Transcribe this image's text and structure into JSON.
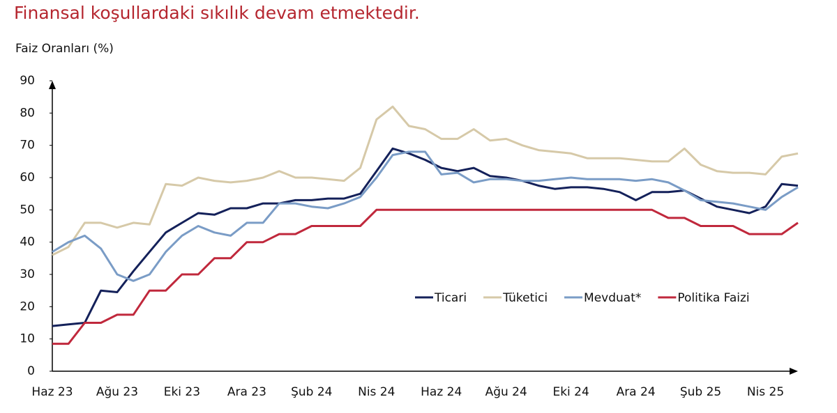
{
  "chart_data": {
    "type": "line",
    "title": "Finansal koşullardaki sıkılık devam etmektedir.",
    "y_label": "Faiz Oranları (%)",
    "categories": [
      "Haz 23",
      null,
      null,
      null,
      "Ağu 23",
      null,
      null,
      null,
      "Eki 23",
      null,
      null,
      null,
      "Ara 23",
      null,
      null,
      null,
      "Şub 24",
      null,
      null,
      null,
      "Nis 24",
      null,
      null,
      null,
      "Haz 24",
      null,
      null,
      null,
      "Ağu 24",
      null,
      null,
      null,
      "Eki 24",
      null,
      null,
      null,
      "Ara 24",
      null,
      null,
      null,
      "Şub 25",
      null,
      null,
      null,
      "Nis 25",
      null,
      null
    ],
    "series": [
      {
        "name": "Ticari",
        "color": "#14215a",
        "values": [
          14,
          14.5,
          15,
          25,
          24.5,
          31,
          37,
          43,
          46,
          49,
          48.5,
          50.5,
          50.5,
          52,
          52,
          53,
          53,
          53.5,
          53.5,
          55,
          62,
          69,
          67.5,
          65.5,
          63,
          62,
          63,
          60.5,
          60,
          59,
          57.5,
          56.5,
          57,
          57,
          56.5,
          55.5,
          53,
          55.5,
          55.5,
          56,
          53.5,
          51,
          50,
          49,
          51,
          58,
          57.5
        ]
      },
      {
        "name": "Tüketici",
        "color": "#d6c9a8",
        "values": [
          36,
          38.5,
          46,
          46,
          44.5,
          46,
          45.5,
          58,
          57.5,
          60,
          59,
          58.5,
          59,
          60,
          62,
          60,
          60,
          59.5,
          59,
          63,
          78,
          82,
          76,
          75,
          72,
          72,
          75,
          71.5,
          72,
          70,
          68.5,
          68,
          67.5,
          66,
          66,
          66,
          65.5,
          65,
          65,
          69,
          64,
          62,
          61.5,
          61.5,
          61,
          66.5,
          67.5
        ]
      },
      {
        "name": "Mevduat*",
        "color": "#7a9cc6",
        "values": [
          37,
          40,
          42,
          38,
          30,
          28,
          30,
          37,
          42,
          45,
          43,
          42,
          46,
          46,
          52,
          52,
          51,
          50.5,
          52,
          54,
          60,
          67,
          68,
          68,
          61,
          61.5,
          58.5,
          59.5,
          59.5,
          59,
          59,
          59.5,
          60,
          59.5,
          59.5,
          59.5,
          59,
          59.5,
          58.5,
          56,
          53,
          52.5,
          52,
          51,
          50,
          54,
          57
        ]
      },
      {
        "name": "Politika Faizi",
        "color": "#c0283c",
        "values": [
          8.5,
          8.5,
          15,
          15,
          17.5,
          17.5,
          25,
          25,
          30,
          30,
          35,
          35,
          40,
          40,
          42.5,
          42.5,
          45,
          45,
          45,
          45,
          50,
          50,
          50,
          50,
          50,
          50,
          50,
          50,
          50,
          50,
          50,
          50,
          50,
          50,
          50,
          50,
          50,
          50,
          47.5,
          47.5,
          45,
          45,
          45,
          42.5,
          42.5,
          42.5,
          46
        ]
      }
    ],
    "ylim": [
      0,
      90
    ],
    "yticks": [
      0,
      10,
      20,
      30,
      40,
      50,
      60,
      70,
      80,
      90
    ],
    "grid": false
  }
}
